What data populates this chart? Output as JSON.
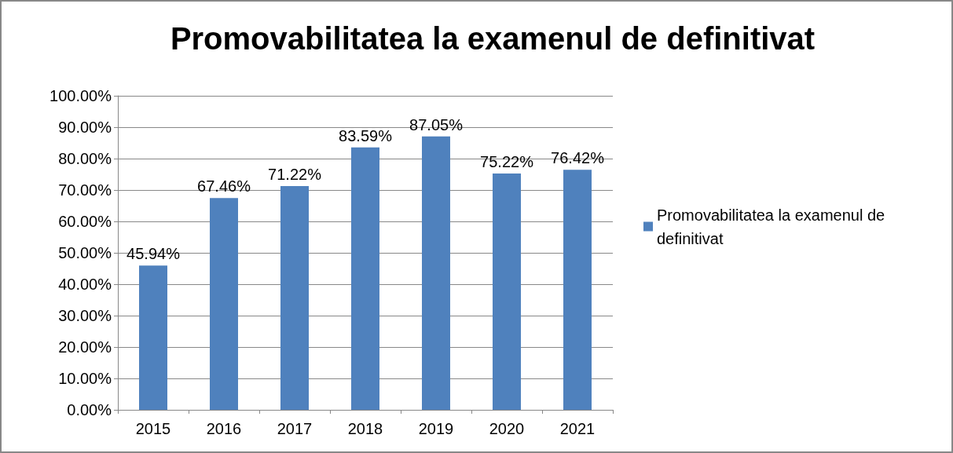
{
  "chart_data": {
    "type": "bar",
    "title": "Promovabilitatea la examenul de definitivat",
    "categories": [
      "2015",
      "2016",
      "2017",
      "2018",
      "2019",
      "2020",
      "2021"
    ],
    "series": [
      {
        "name": "Promovabilitatea la examenul de definitivat",
        "color": "#4f81bd",
        "values": [
          45.94,
          67.46,
          71.22,
          83.59,
          87.05,
          75.22,
          76.42
        ],
        "value_labels": [
          "45.94%",
          "67.46%",
          "71.22%",
          "83.59%",
          "87.05%",
          "75.22%",
          "76.42%"
        ]
      }
    ],
    "ylim": [
      0,
      100
    ],
    "yticks": [
      {
        "value": 0,
        "label": "0.00%"
      },
      {
        "value": 10,
        "label": "10.00%"
      },
      {
        "value": 20,
        "label": "20.00%"
      },
      {
        "value": 30,
        "label": "30.00%"
      },
      {
        "value": 40,
        "label": "40.00%"
      },
      {
        "value": 50,
        "label": "50.00%"
      },
      {
        "value": 60,
        "label": "60.00%"
      },
      {
        "value": 70,
        "label": "70.00%"
      },
      {
        "value": 80,
        "label": "80.00%"
      },
      {
        "value": 90,
        "label": "90.00%"
      },
      {
        "value": 100,
        "label": "100.00%"
      }
    ],
    "grid": "y",
    "legend": "right"
  }
}
